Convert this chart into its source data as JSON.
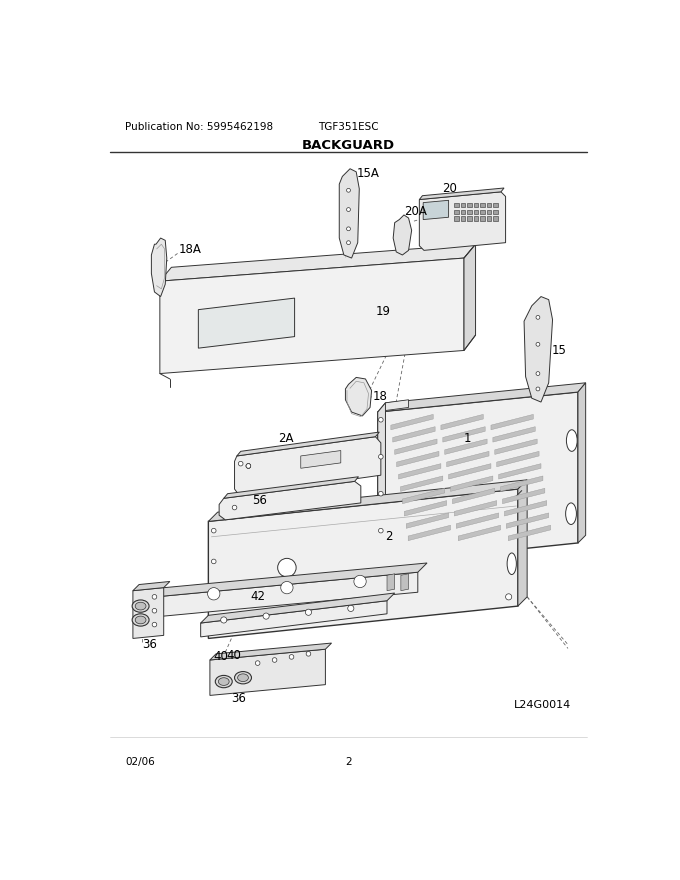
{
  "title": "BACKGUARD",
  "pub_no": "Publication No: 5995462198",
  "model": "TGF351ESC",
  "date": "02/06",
  "page": "2",
  "diagram_id": "L24G0014",
  "bg_color": "#ffffff",
  "fill_light": "#f0f0f0",
  "fill_mid": "#e0e0e0",
  "fill_dark": "#cccccc",
  "line_color": "#333333"
}
